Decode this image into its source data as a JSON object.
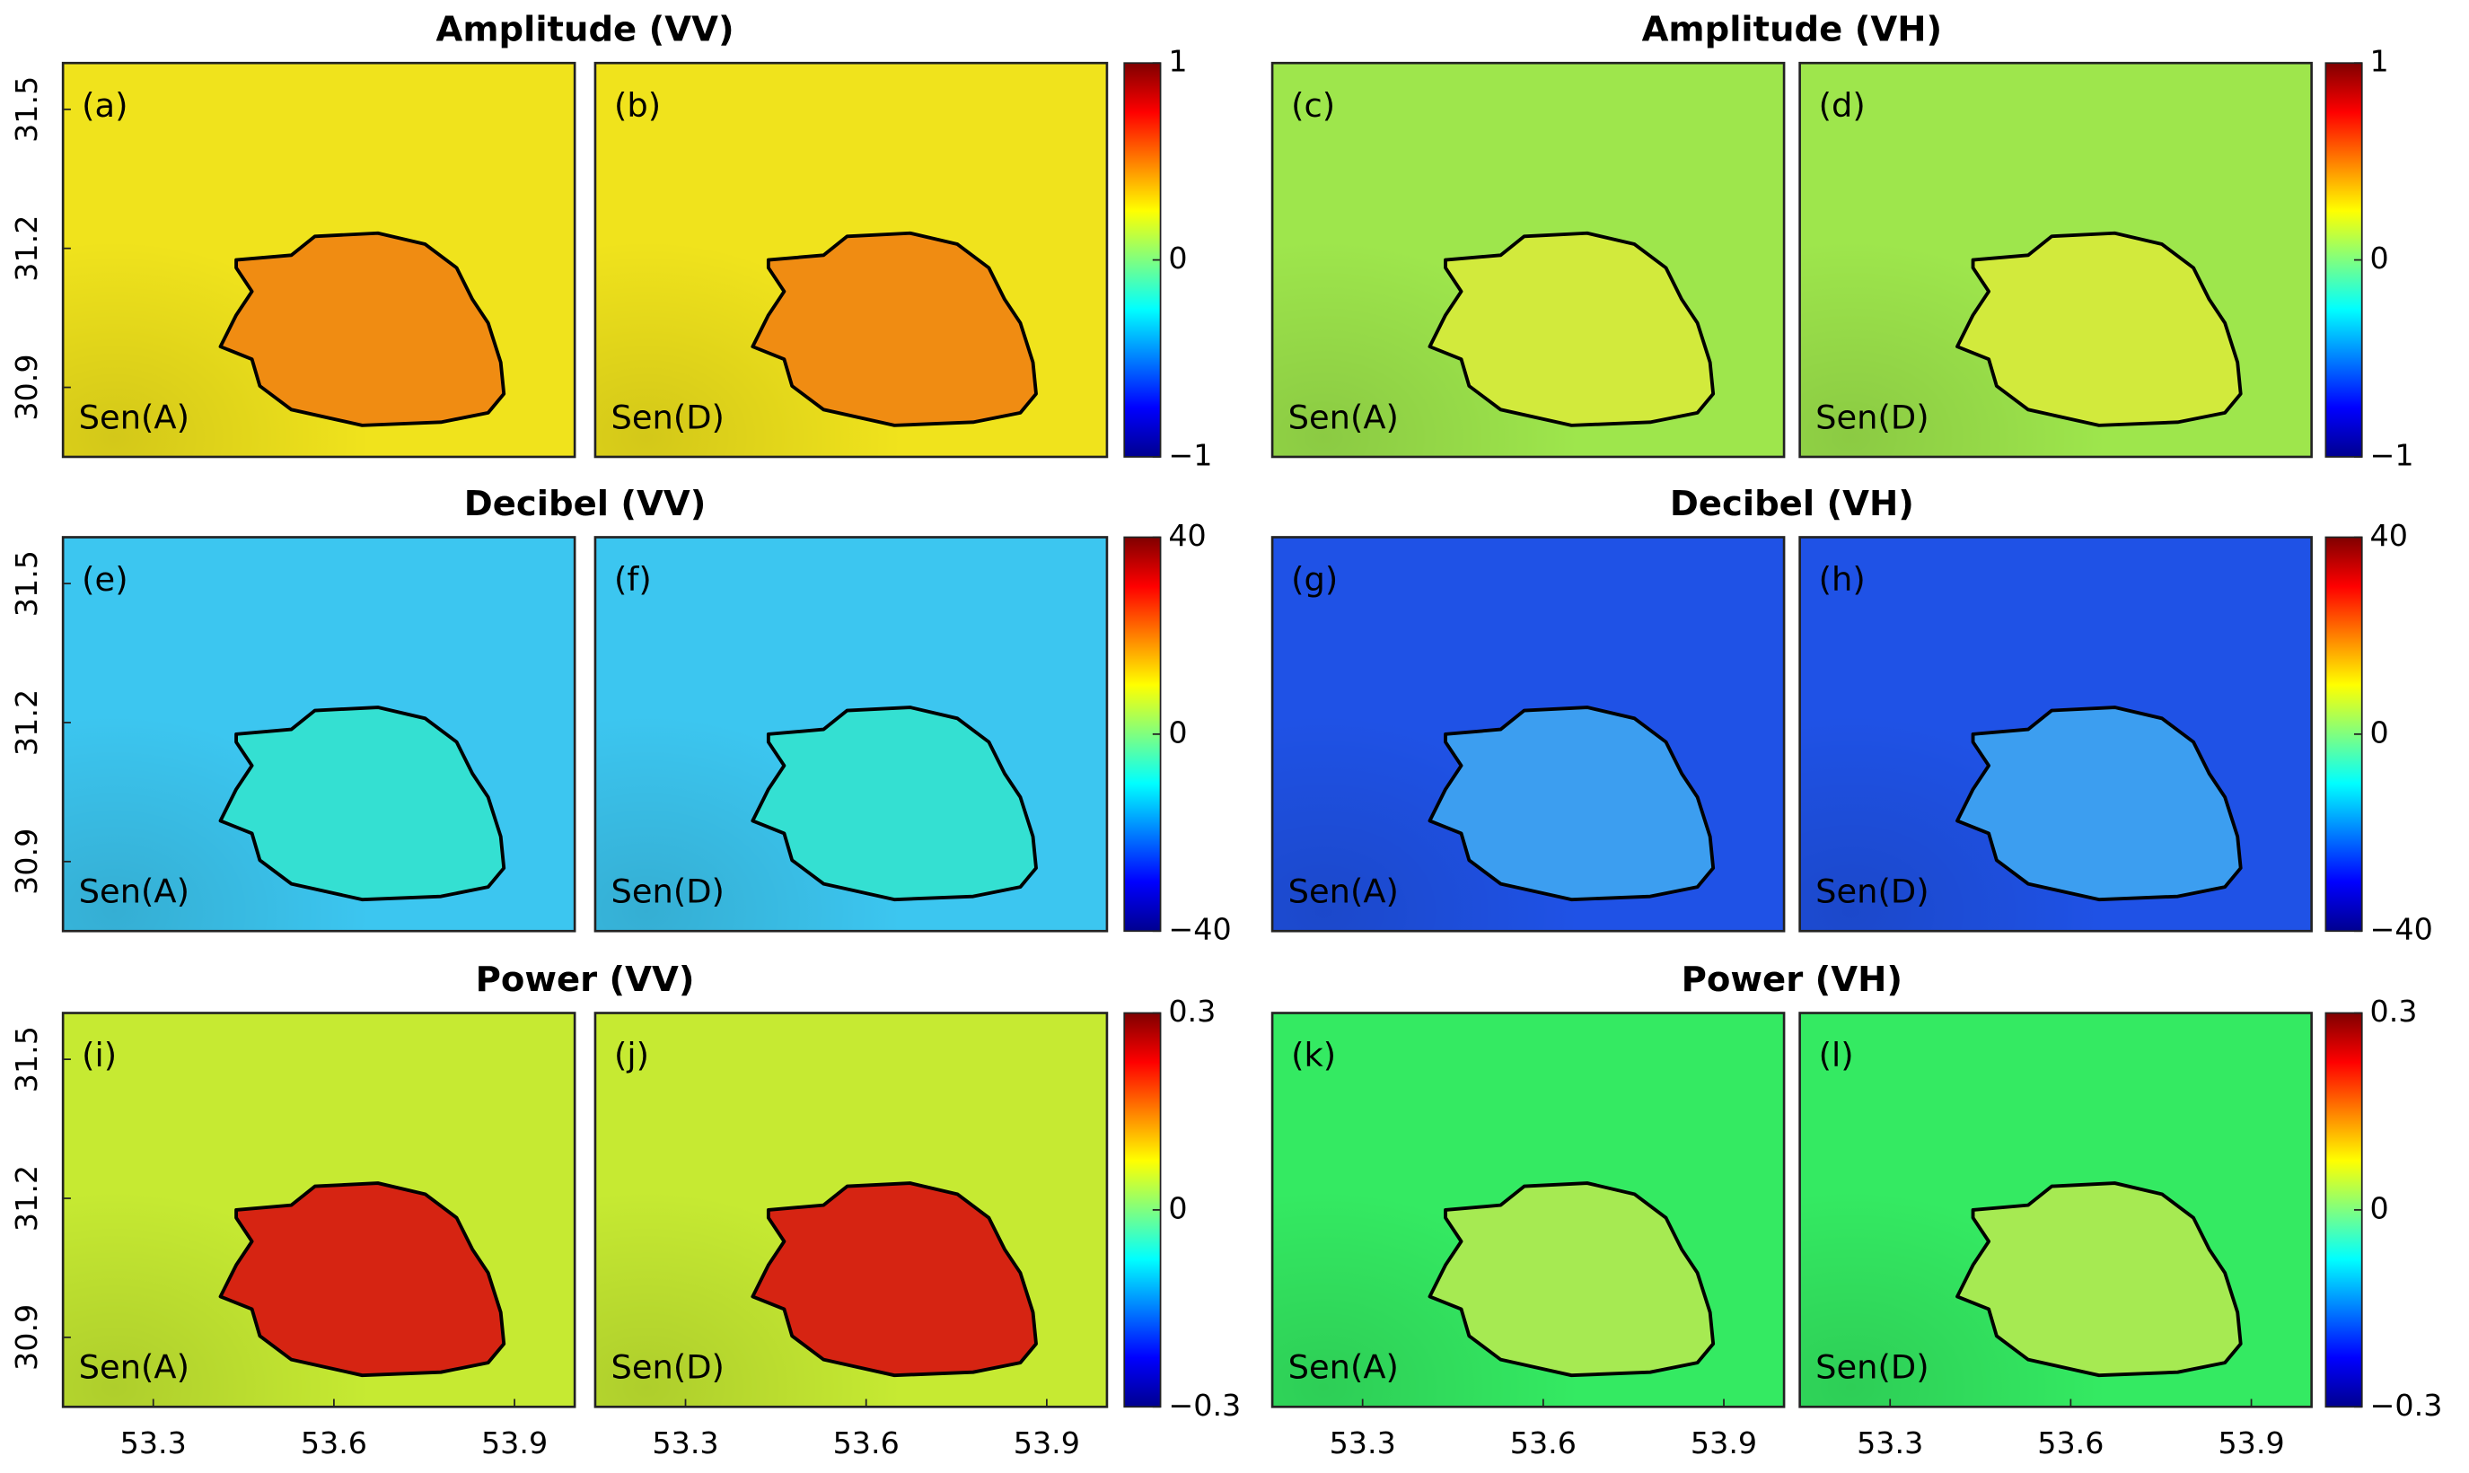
{
  "figure": {
    "xticks": [
      53.3,
      53.6,
      53.9
    ],
    "xlim": [
      53.15,
      54.0
    ],
    "yticks": [
      31.5,
      31.2,
      30.9
    ],
    "ylim": [
      30.75,
      31.6
    ],
    "groups": [
      {
        "title": "Amplitude (VV)",
        "clim": [
          -1,
          1
        ],
        "colorbar_ticks": [
          1,
          0,
          {
            "value": -1,
            "label": "−1"
          }
        ],
        "colors": {
          "outside": "#f0e31c",
          "inside": "#f08c12"
        },
        "panels": [
          {
            "label": "(a)",
            "sensor": "Sen(A)"
          },
          {
            "label": "(b)",
            "sensor": "Sen(D)"
          }
        ]
      },
      {
        "title": "Amplitude (VH)",
        "clim": [
          -1,
          1
        ],
        "colorbar_ticks": [
          1,
          0,
          {
            "value": -1,
            "label": "−1"
          }
        ],
        "colors": {
          "outside": "#9ee64c",
          "inside": "#d2ea3c"
        },
        "panels": [
          {
            "label": "(c)",
            "sensor": "Sen(A)"
          },
          {
            "label": "(d)",
            "sensor": "Sen(D)"
          }
        ]
      },
      {
        "title": "Decibel (VV)",
        "clim": [
          -40,
          40
        ],
        "colorbar_ticks": [
          40,
          0,
          {
            "value": -40,
            "label": "−40"
          }
        ],
        "colors": {
          "outside": "#3cc6f0",
          "inside": "#34e0d2"
        },
        "panels": [
          {
            "label": "(e)",
            "sensor": "Sen(A)"
          },
          {
            "label": "(f)",
            "sensor": "Sen(D)"
          }
        ]
      },
      {
        "title": "Decibel (VH)",
        "clim": [
          -40,
          40
        ],
        "colorbar_ticks": [
          40,
          0,
          {
            "value": -40,
            "label": "−40"
          }
        ],
        "colors": {
          "outside": "#1f52e6",
          "inside": "#3c9ef0"
        },
        "panels": [
          {
            "label": "(g)",
            "sensor": "Sen(A)"
          },
          {
            "label": "(h)",
            "sensor": "Sen(D)"
          }
        ]
      },
      {
        "title": "Power (VV)",
        "clim": [
          -0.3,
          0.3
        ],
        "colorbar_ticks": [
          0.3,
          0,
          {
            "value": -0.3,
            "label": "−0.3"
          }
        ],
        "colors": {
          "outside": "#c6ea32",
          "inside": "#d62412"
        },
        "panels": [
          {
            "label": "(i)",
            "sensor": "Sen(A)"
          },
          {
            "label": "(j)",
            "sensor": "Sen(D)"
          }
        ]
      },
      {
        "title": "Power (VH)",
        "clim": [
          -0.3,
          0.3
        ],
        "colorbar_ticks": [
          0.3,
          0,
          {
            "value": -0.3,
            "label": "−0.3"
          }
        ],
        "colors": {
          "outside": "#34ea62",
          "inside": "#a6ea52"
        },
        "panels": [
          {
            "label": "(k)",
            "sensor": "Sen(A)"
          },
          {
            "label": "(l)",
            "sensor": "Sen(D)"
          }
        ]
      }
    ]
  }
}
